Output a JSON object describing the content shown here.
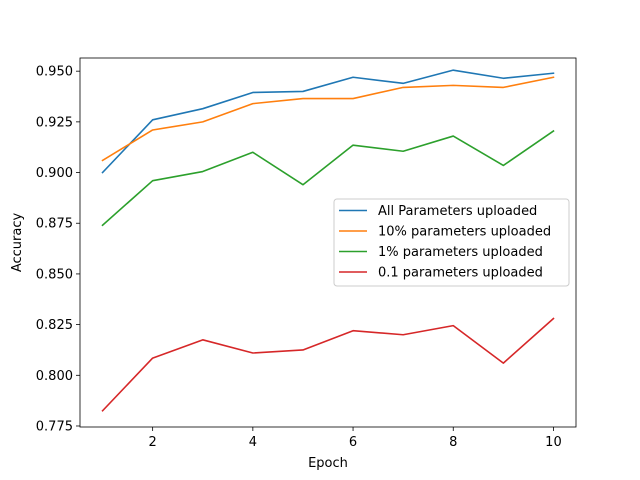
{
  "chart_data": {
    "type": "line",
    "title": "",
    "xlabel": "Epoch",
    "ylabel": "Accuracy",
    "x": [
      1,
      2,
      3,
      4,
      5,
      6,
      7,
      8,
      9,
      10
    ],
    "xlim": [
      0.55,
      10.45
    ],
    "ylim": [
      0.7745,
      0.9565
    ],
    "xticks": [
      2,
      4,
      6,
      8,
      10
    ],
    "xtick_labels": [
      "2",
      "4",
      "6",
      "8",
      "10"
    ],
    "yticks": [
      0.775,
      0.8,
      0.825,
      0.85,
      0.875,
      0.9,
      0.925,
      0.95
    ],
    "ytick_labels": [
      "0.775",
      "0.800",
      "0.825",
      "0.850",
      "0.875",
      "0.900",
      "0.925",
      "0.950"
    ],
    "grid": false,
    "legend_position": "center-right",
    "series": [
      {
        "name": "All Parameters uploaded",
        "color": "#1f77b4",
        "values": [
          0.9,
          0.926,
          0.9315,
          0.9395,
          0.94,
          0.947,
          0.944,
          0.9505,
          0.9465,
          0.949
        ]
      },
      {
        "name": "10% parameters uploaded",
        "color": "#ff7f0e",
        "values": [
          0.906,
          0.921,
          0.925,
          0.934,
          0.9365,
          0.9365,
          0.942,
          0.943,
          0.942,
          0.947
        ]
      },
      {
        "name": "1% parameters uploaded",
        "color": "#2ca02c",
        "values": [
          0.874,
          0.896,
          0.9005,
          0.91,
          0.894,
          0.9135,
          0.9105,
          0.918,
          0.9035,
          0.9205
        ]
      },
      {
        "name": "0.1 parameters uploaded",
        "color": "#d62728",
        "values": [
          0.7825,
          0.8085,
          0.8175,
          0.811,
          0.8125,
          0.822,
          0.82,
          0.8245,
          0.806,
          0.828
        ]
      }
    ]
  }
}
